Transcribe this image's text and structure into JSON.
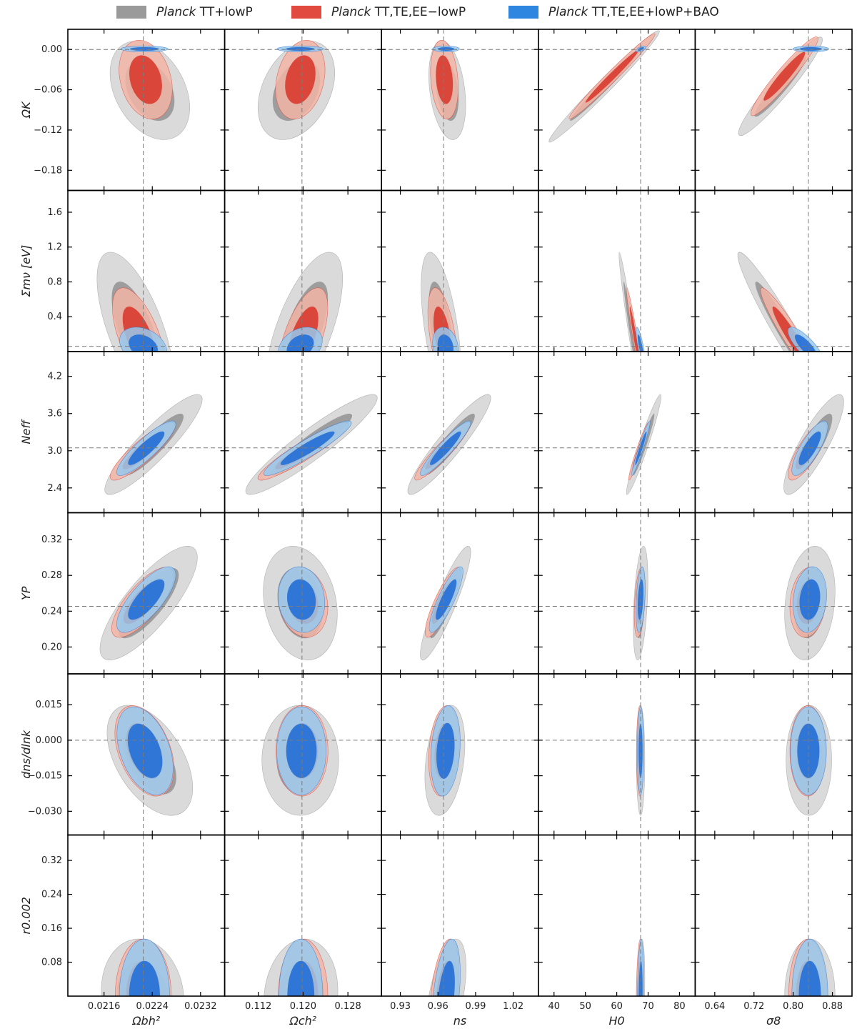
{
  "legend": [
    {
      "name": "TT+lowP",
      "prefix": "Planck",
      "color": "#8e8e8e",
      "swatch": "#9a9a9a"
    },
    {
      "name": "TT,TE,EE−lowP",
      "prefix": "Planck",
      "color": "#d94135",
      "swatch": "#e04a3f"
    },
    {
      "name": "TT,TE,EE+lowP+BAO",
      "prefix": "Planck",
      "color": "#2a73d6",
      "swatch": "#2f86e0"
    }
  ],
  "chart_data": {
    "type": "contour-grid",
    "columns": [
      {
        "label": "Ωbh²",
        "range": [
          0.021,
          0.0236
        ],
        "ticks": [
          0.0216,
          0.0224,
          0.0232
        ],
        "tick_labels": [
          "0.0216",
          "0.0224",
          "0.0232"
        ],
        "ref": 0.02225
      },
      {
        "label": "Ωch²",
        "range": [
          0.106,
          0.134
        ],
        "ticks": [
          0.112,
          0.12,
          0.128
        ],
        "tick_labels": [
          "0.112",
          "0.120",
          "0.128"
        ],
        "ref": 0.1198
      },
      {
        "label": "ns",
        "range": [
          0.915,
          1.04
        ],
        "ticks": [
          0.93,
          0.96,
          0.99,
          1.02
        ],
        "tick_labels": [
          "0.93",
          "0.96",
          "0.99",
          "1.02"
        ],
        "ref": 0.9645
      },
      {
        "label": "H0",
        "range": [
          35,
          85
        ],
        "ticks": [
          40,
          50,
          60,
          70,
          80
        ],
        "tick_labels": [
          "40",
          "50",
          "60",
          "70",
          "80"
        ],
        "ref": 67.6
      },
      {
        "label": "σ8",
        "range": [
          0.6,
          0.92
        ],
        "ticks": [
          0.64,
          0.72,
          0.8,
          0.88
        ],
        "tick_labels": [
          "0.64",
          "0.72",
          "0.80",
          "0.88"
        ],
        "ref": 0.831
      }
    ],
    "rows": [
      {
        "label": "ΩK",
        "range": [
          -0.21,
          0.03
        ],
        "ticks": [
          0.0,
          -0.06,
          -0.12,
          -0.18
        ],
        "tick_labels": [
          "0.00",
          "−0.06",
          "−0.12",
          "−0.18"
        ],
        "ref": 0.0
      },
      {
        "label": "Σmν [eV]",
        "range": [
          0.0,
          1.85
        ],
        "ticks": [
          0.4,
          0.8,
          1.2,
          1.6
        ],
        "tick_labels": [
          "0.4",
          "0.8",
          "1.2",
          "1.6"
        ],
        "ref": 0.06
      },
      {
        "label": "Neff",
        "range": [
          2.0,
          4.6
        ],
        "ticks": [
          2.4,
          3.0,
          3.6,
          4.2
        ],
        "tick_labels": [
          "2.4",
          "3.0",
          "3.6",
          "4.2"
        ],
        "ref": 3.046
      },
      {
        "label": "YP",
        "range": [
          0.17,
          0.35
        ],
        "ticks": [
          0.2,
          0.24,
          0.28,
          0.32
        ],
        "tick_labels": [
          "0.20",
          "0.24",
          "0.28",
          "0.32"
        ],
        "ref": 0.2454
      },
      {
        "label": "dns/dlnk",
        "range": [
          -0.04,
          0.028
        ],
        "ticks": [
          0.015,
          0.0,
          -0.015,
          -0.03
        ],
        "tick_labels": [
          "0.015",
          "0.000",
          "−0.015",
          "−0.030"
        ],
        "ref": 0.0
      },
      {
        "label": "r0.002",
        "range": [
          0.0,
          0.38
        ],
        "ticks": [
          0.08,
          0.16,
          0.24,
          0.32
        ],
        "tick_labels": [
          "0.08",
          "0.16",
          "0.24",
          "0.32"
        ],
        "ref": null
      }
    ],
    "series_order": [
      "TT+lowP",
      "TT,TE,EE−lowP",
      "TT,TE,EE+lowP+BAO"
    ],
    "level_colors": {
      "TT+lowP": [
        "#d4d4d4",
        "#9a9a9a"
      ],
      "TT,TE,EE−lowP": [
        "#f2b5a6",
        "#d94135"
      ],
      "TT,TE,EE+lowP+BAO": [
        "#97c9ef",
        "#2a73d6"
      ]
    },
    "note": "Each contour is [center_x, center_y, sigma_x, sigma_y, correlation] in data units; outer filled region = 95%, inner = 68%.",
    "contours": [
      [
        {
          "TT+lowP": [
            0.02236,
            -0.061,
            0.00027,
            0.03,
            -0.35
          ],
          "TT,TE,EE−lowP": [
            0.02229,
            -0.045,
            0.00018,
            0.024,
            -0.25
          ],
          "TT,TE,EE+lowP+BAO": [
            0.02227,
            0.0007,
            0.00016,
            0.0018,
            0.0
          ]
        },
        {
          "TT+lowP": [
            0.1188,
            -0.061,
            0.0028,
            0.03,
            0.35
          ],
          "TT,TE,EE−lowP": [
            0.1195,
            -0.045,
            0.0018,
            0.024,
            0.25
          ],
          "TT,TE,EE+lowP+BAO": [
            0.1195,
            0.0007,
            0.0017,
            0.0018,
            0.0
          ]
        },
        {
          "TT+lowP": [
            0.9674,
            -0.061,
            0.006,
            0.03,
            -0.3
          ],
          "TT,TE,EE−lowP": [
            0.9651,
            -0.045,
            0.0045,
            0.024,
            -0.2
          ],
          "TT,TE,EE+lowP+BAO": [
            0.9664,
            0.0007,
            0.0044,
            0.0018,
            0.0
          ]
        },
        {
          "TT+lowP": [
            56.0,
            -0.055,
            7.2,
            0.034,
            0.985
          ],
          "TT,TE,EE−lowP": [
            58.5,
            -0.04,
            5.6,
            0.026,
            0.985
          ],
          "TT,TE,EE+lowP+BAO": [
            67.7,
            0.0007,
            0.65,
            0.0018,
            0.6
          ]
        },
        {
          "TT+lowP": [
            0.774,
            -0.055,
            0.035,
            0.03,
            0.95
          ],
          "TT,TE,EE−lowP": [
            0.782,
            -0.04,
            0.028,
            0.024,
            0.95
          ],
          "TT,TE,EE+lowP+BAO": [
            0.836,
            0.0007,
            0.015,
            0.0018,
            0.0
          ]
        }
      ],
      [
        {
          "TT+lowP": [
            0.02212,
            0.26,
            0.00026,
            0.36,
            -0.65
          ],
          "TT,TE,EE−lowP": [
            0.02218,
            0.17,
            0.00018,
            0.23,
            -0.6
          ],
          "TT,TE,EE+lowP+BAO": [
            0.02225,
            0.06,
            0.00016,
            0.09,
            -0.3
          ]
        },
        {
          "TT+lowP": [
            0.1202,
            0.26,
            0.0028,
            0.36,
            0.65
          ],
          "TT,TE,EE−lowP": [
            0.12,
            0.17,
            0.0018,
            0.23,
            0.6
          ],
          "TT,TE,EE+lowP+BAO": [
            0.1195,
            0.06,
            0.0016,
            0.09,
            0.3
          ]
        },
        {
          "TT+lowP": [
            0.9625,
            0.26,
            0.0065,
            0.36,
            -0.55
          ],
          "TT,TE,EE−lowP": [
            0.9637,
            0.17,
            0.0048,
            0.23,
            -0.5
          ],
          "TT,TE,EE+lowP+BAO": [
            0.966,
            0.06,
            0.0042,
            0.09,
            -0.2
          ]
        },
        {
          "TT+lowP": [
            64.5,
            0.26,
            1.55,
            0.36,
            -0.97
          ],
          "TT,TE,EE−lowP": [
            65.8,
            0.17,
            1.1,
            0.23,
            -0.96
          ],
          "TT,TE,EE+lowP+BAO": [
            67.6,
            0.06,
            0.6,
            0.09,
            -0.8
          ]
        },
        {
          "TT+lowP": [
            0.78,
            0.26,
            0.038,
            0.36,
            -0.96
          ],
          "TT,TE,EE−lowP": [
            0.797,
            0.17,
            0.026,
            0.23,
            -0.95
          ],
          "TT,TE,EE+lowP+BAO": [
            0.826,
            0.06,
            0.015,
            0.09,
            -0.8
          ]
        }
      ],
      [
        {
          "TT+lowP": [
            0.02242,
            3.1,
            0.00033,
            0.33,
            0.9
          ],
          "TT,TE,EE−lowP": [
            0.02224,
            2.99,
            0.00022,
            0.19,
            0.88
          ],
          "TT,TE,EE+lowP+BAO": [
            0.0223,
            3.04,
            0.0002,
            0.18,
            0.88
          ]
        },
        {
          "TT+lowP": [
            0.1215,
            3.1,
            0.0048,
            0.33,
            0.93
          ],
          "TT,TE,EE−lowP": [
            0.12,
            2.99,
            0.0033,
            0.19,
            0.93
          ],
          "TT,TE,EE+lowP+BAO": [
            0.1208,
            3.04,
            0.0032,
            0.18,
            0.93
          ]
        },
        {
          "TT+lowP": [
            0.969,
            3.1,
            0.0135,
            0.33,
            0.93
          ],
          "TT,TE,EE−lowP": [
            0.9635,
            2.99,
            0.009,
            0.19,
            0.93
          ],
          "TT,TE,EE+lowP+BAO": [
            0.966,
            3.04,
            0.0082,
            0.18,
            0.93
          ]
        },
        {
          "TT+lowP": [
            68.6,
            3.1,
            2.25,
            0.33,
            0.96
          ],
          "TT,TE,EE−lowP": [
            67.0,
            2.99,
            1.3,
            0.19,
            0.96
          ],
          "TT,TE,EE+lowP+BAO": [
            67.7,
            3.04,
            1.2,
            0.18,
            0.96
          ]
        },
        {
          "TT+lowP": [
            0.842,
            3.1,
            0.025,
            0.33,
            0.85
          ],
          "TT,TE,EE−lowP": [
            0.829,
            2.99,
            0.016,
            0.19,
            0.8
          ],
          "TT,TE,EE+lowP+BAO": [
            0.834,
            3.04,
            0.015,
            0.18,
            0.8
          ]
        }
      ],
      [
        {
          "TT+lowP": [
            0.02234,
            0.249,
            0.00033,
            0.026,
            0.8
          ],
          "TT,TE,EE−lowP": [
            0.02224,
            0.25,
            0.00021,
            0.016,
            0.75
          ],
          "TT,TE,EE+lowP+BAO": [
            0.0223,
            0.253,
            0.0002,
            0.015,
            0.75
          ]
        },
        {
          "TT+lowP": [
            0.1195,
            0.249,
            0.0027,
            0.026,
            -0.2
          ],
          "TT,TE,EE−lowP": [
            0.12,
            0.25,
            0.0018,
            0.016,
            -0.15
          ],
          "TT,TE,EE+lowP+BAO": [
            0.1197,
            0.253,
            0.0017,
            0.015,
            -0.1
          ]
        },
        {
          "TT+lowP": [
            0.966,
            0.249,
            0.0082,
            0.026,
            0.9
          ],
          "TT,TE,EE−lowP": [
            0.964,
            0.25,
            0.0058,
            0.016,
            0.85
          ],
          "TT,TE,EE+lowP+BAO": [
            0.9665,
            0.253,
            0.0055,
            0.015,
            0.85
          ]
        },
        {
          "TT+lowP": [
            67.6,
            0.249,
            0.95,
            0.026,
            0.4
          ],
          "TT,TE,EE−lowP": [
            67.3,
            0.25,
            0.7,
            0.016,
            0.35
          ],
          "TT,TE,EE+lowP+BAO": [
            67.6,
            0.253,
            0.6,
            0.015,
            0.35
          ]
        },
        {
          "TT+lowP": [
            0.834,
            0.249,
            0.021,
            0.026,
            0.2
          ],
          "TT,TE,EE−lowP": [
            0.83,
            0.25,
            0.015,
            0.016,
            0.15
          ],
          "TT,TE,EE+lowP+BAO": [
            0.834,
            0.253,
            0.014,
            0.015,
            0.15
          ]
        }
      ],
      [
        {
          "TT+lowP": [
            0.02236,
            -0.0085,
            0.00029,
            0.0095,
            -0.5
          ],
          "TT,TE,EE−lowP": [
            0.02227,
            -0.0045,
            0.0002,
            0.0078,
            -0.4
          ],
          "TT,TE,EE+lowP+BAO": [
            0.02228,
            -0.0045,
            0.00019,
            0.0076,
            -0.4
          ]
        },
        {
          "TT+lowP": [
            0.1195,
            -0.0085,
            0.0028,
            0.0095,
            0.0
          ],
          "TT,TE,EE−lowP": [
            0.1198,
            -0.0045,
            0.0019,
            0.0078,
            0.0
          ],
          "TT,TE,EE+lowP+BAO": [
            0.1197,
            -0.0045,
            0.0018,
            0.0076,
            0.0
          ]
        },
        {
          "TT+lowP": [
            0.9655,
            -0.0085,
            0.0065,
            0.0095,
            0.3
          ],
          "TT,TE,EE−lowP": [
            0.9648,
            -0.0045,
            0.005,
            0.0078,
            0.2
          ],
          "TT,TE,EE+lowP+BAO": [
            0.966,
            -0.0045,
            0.0048,
            0.0078,
            0.2
          ]
        },
        {
          "TT+lowP": [
            67.6,
            -0.0085,
            0.55,
            0.0095,
            0.0
          ],
          "TT,TE,EE−lowP": [
            67.4,
            -0.0045,
            0.45,
            0.0078,
            0.0
          ],
          "TT,TE,EE+lowP+BAO": [
            67.6,
            -0.0045,
            0.42,
            0.0076,
            0.0
          ]
        },
        {
          "TT+lowP": [
            0.832,
            -0.0085,
            0.019,
            0.0095,
            0.0
          ],
          "TT,TE,EE−lowP": [
            0.83,
            -0.0045,
            0.015,
            0.0078,
            0.0
          ],
          "TT,TE,EE+lowP+BAO": [
            0.831,
            -0.0045,
            0.015,
            0.0076,
            0.0
          ]
        }
      ],
      [
        {
          "TT+lowP": [
            0.02224,
            0.0,
            0.00028,
            0.055,
            -0.1
          ],
          "TT,TE,EE−lowP": [
            0.02225,
            0.0,
            0.00019,
            0.055,
            0.0
          ],
          "TT,TE,EE+lowP+BAO": [
            0.02227,
            0.0,
            0.00017,
            0.055,
            0.0
          ]
        },
        {
          "TT+lowP": [
            0.1196,
            0.0,
            0.0027,
            0.055,
            0.1
          ],
          "TT,TE,EE−lowP": [
            0.12,
            0.0,
            0.0018,
            0.055,
            0.0
          ],
          "TT,TE,EE+lowP+BAO": [
            0.1196,
            0.0,
            0.0016,
            0.055,
            0.0
          ]
        },
        {
          "TT+lowP": [
            0.9665,
            0.0,
            0.0065,
            0.055,
            0.5
          ],
          "TT,TE,EE−lowP": [
            0.965,
            0.0,
            0.0048,
            0.055,
            0.4
          ],
          "TT,TE,EE+lowP+BAO": [
            0.9665,
            0.0,
            0.0046,
            0.055,
            0.4
          ]
        },
        {
          "TT+lowP": [
            67.6,
            0.0,
            0.55,
            0.055,
            0.3
          ],
          "TT,TE,EE−lowP": [
            67.3,
            0.0,
            0.45,
            0.055,
            0.2
          ],
          "TT,TE,EE+lowP+BAO": [
            67.6,
            0.0,
            0.42,
            0.055,
            0.2
          ]
        },
        {
          "TT+lowP": [
            0.834,
            0.0,
            0.021,
            0.055,
            0.0
          ],
          "TT,TE,EE−lowP": [
            0.83,
            0.0,
            0.016,
            0.055,
            0.0
          ],
          "TT,TE,EE+lowP+BAO": [
            0.834,
            0.0,
            0.015,
            0.055,
            0.0
          ]
        }
      ]
    ]
  }
}
